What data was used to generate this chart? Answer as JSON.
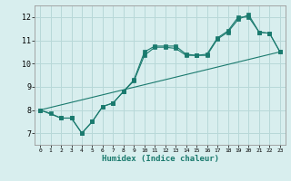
{
  "xlabel": "Humidex (Indice chaleur)",
  "bg_color": "#d8eeee",
  "line_color": "#1a7a6e",
  "grid_color": "#b8d8d8",
  "xlim": [
    -0.5,
    23.5
  ],
  "ylim": [
    6.5,
    12.5
  ],
  "xticks": [
    0,
    1,
    2,
    3,
    4,
    5,
    6,
    7,
    8,
    9,
    10,
    11,
    12,
    13,
    14,
    15,
    16,
    17,
    18,
    19,
    20,
    21,
    22,
    23
  ],
  "yticks": [
    7,
    8,
    9,
    10,
    11,
    12
  ],
  "line1_x": [
    0,
    1,
    2,
    3,
    4,
    5,
    6,
    7,
    8,
    9,
    10,
    11,
    12,
    13,
    14,
    15,
    16,
    17,
    18,
    19,
    20,
    21,
    22,
    23
  ],
  "line1_y": [
    8.0,
    7.85,
    7.65,
    7.65,
    7.0,
    7.5,
    8.15,
    8.3,
    8.8,
    9.3,
    10.5,
    10.75,
    10.75,
    10.75,
    10.4,
    10.35,
    10.4,
    11.1,
    11.4,
    12.0,
    12.0,
    11.35,
    11.3,
    10.5
  ],
  "line2_x": [
    0,
    2,
    3,
    4,
    5,
    6,
    7,
    8,
    9,
    10,
    11,
    12,
    13,
    14,
    15,
    16,
    17,
    18,
    19,
    20,
    21,
    22,
    23
  ],
  "line2_y": [
    8.0,
    7.65,
    7.65,
    7.0,
    7.5,
    8.15,
    8.3,
    8.8,
    9.25,
    10.35,
    10.7,
    10.7,
    10.65,
    10.35,
    10.35,
    10.35,
    11.05,
    11.35,
    11.9,
    12.1,
    11.35,
    11.3,
    10.5
  ],
  "line3_x": [
    0,
    23
  ],
  "line3_y": [
    8.0,
    10.5
  ]
}
